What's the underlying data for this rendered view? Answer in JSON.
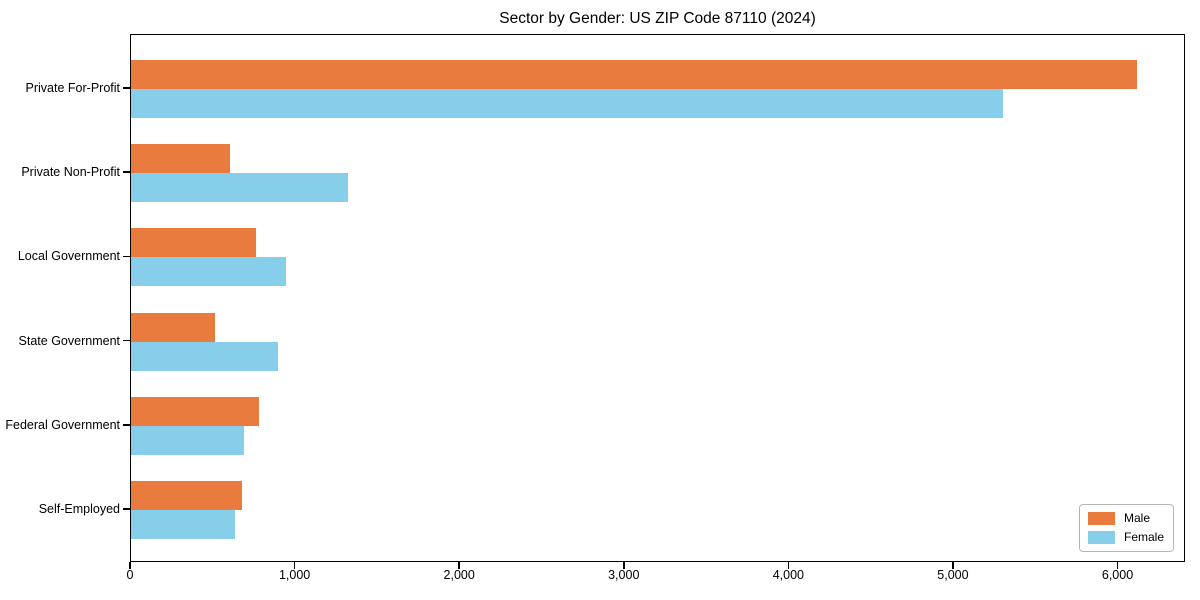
{
  "chart_data": {
    "type": "bar",
    "orientation": "horizontal",
    "title": "Sector by Gender: US ZIP Code 87110 (2024)",
    "categories": [
      "Private For-Profit",
      "Private Non-Profit",
      "Local Government",
      "State Government",
      "Federal Government",
      "Self-Employed"
    ],
    "series": [
      {
        "name": "Male",
        "color": "#e87b3d",
        "values": [
          6110,
          600,
          760,
          510,
          775,
          675
        ]
      },
      {
        "name": "Female",
        "color": "#87ceeb",
        "values": [
          5300,
          1320,
          940,
          890,
          685,
          630
        ]
      }
    ],
    "xlabel": "",
    "ylabel": "",
    "xlim": [
      0,
      6410
    ],
    "xticks": [
      0,
      1000,
      2000,
      3000,
      4000,
      5000,
      6000
    ],
    "xtick_labels": [
      "0",
      "1,000",
      "2,000",
      "3,000",
      "4,000",
      "5,000",
      "6,000"
    ],
    "grid": false,
    "legend": {
      "position": "lower-right",
      "entries": [
        "Male",
        "Female"
      ]
    },
    "colors": {
      "axis": "#000000",
      "background": "#ffffff",
      "legend_border": "#b6b6b6"
    }
  }
}
